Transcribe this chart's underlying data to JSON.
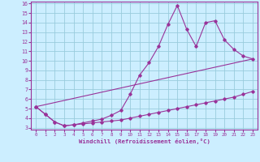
{
  "xlabel": "Windchill (Refroidissement éolien,°C)",
  "bg_color": "#cceeff",
  "grid_color": "#99ccdd",
  "line_color": "#993399",
  "spine_color": "#993399",
  "xlim": [
    -0.5,
    23.5
  ],
  "ylim": [
    2.8,
    16.2
  ],
  "xticks": [
    0,
    1,
    2,
    3,
    4,
    5,
    6,
    7,
    8,
    9,
    10,
    11,
    12,
    13,
    14,
    15,
    16,
    17,
    18,
    19,
    20,
    21,
    22,
    23
  ],
  "yticks": [
    3,
    4,
    5,
    6,
    7,
    8,
    9,
    10,
    11,
    12,
    13,
    14,
    15,
    16
  ],
  "line1_x": [
    0,
    1,
    2,
    3,
    4,
    5,
    6,
    7,
    8,
    9,
    10,
    11,
    12,
    13,
    14,
    15,
    16,
    17,
    18,
    19,
    20,
    21,
    22,
    23
  ],
  "line1_y": [
    5.2,
    4.4,
    3.6,
    3.2,
    3.3,
    3.4,
    3.5,
    3.6,
    3.7,
    3.8,
    4.0,
    4.2,
    4.4,
    4.6,
    4.8,
    5.0,
    5.2,
    5.4,
    5.6,
    5.8,
    6.0,
    6.2,
    6.5,
    6.8
  ],
  "line2_x": [
    0,
    1,
    2,
    3,
    4,
    5,
    6,
    7,
    8,
    9,
    10,
    11,
    12,
    13,
    14,
    15,
    16,
    17,
    18,
    19,
    20,
    21,
    22,
    23
  ],
  "line2_y": [
    5.2,
    4.4,
    3.6,
    3.2,
    3.3,
    3.5,
    3.7,
    3.9,
    4.3,
    4.8,
    6.5,
    8.5,
    9.8,
    11.5,
    13.8,
    15.8,
    13.3,
    11.5,
    14.0,
    14.2,
    12.2,
    11.2,
    10.5,
    10.2
  ],
  "line3_x": [
    0,
    23
  ],
  "line3_y": [
    5.2,
    10.2
  ]
}
